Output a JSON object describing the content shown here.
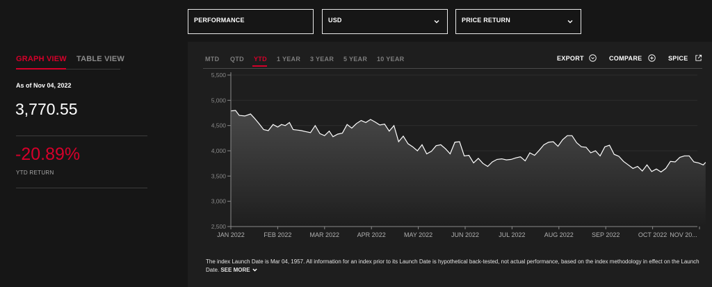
{
  "selectors": [
    {
      "label": "PERFORMANCE",
      "has_chevron": false
    },
    {
      "label": "USD",
      "has_chevron": true
    },
    {
      "label": "PRICE RETURN",
      "has_chevron": true
    }
  ],
  "view_tabs": {
    "graph": "GRAPH VIEW",
    "table": "TABLE VIEW",
    "active": "graph"
  },
  "summary": {
    "as_of": "As of Nov 04, 2022",
    "value": "3,770.55",
    "ytd_return": "-20.89%",
    "ytd_label": "YTD RETURN"
  },
  "periods": [
    "MTD",
    "QTD",
    "YTD",
    "1 YEAR",
    "3 YEAR",
    "5 YEAR",
    "10 YEAR"
  ],
  "active_period": "YTD",
  "actions": {
    "export": "EXPORT",
    "compare": "COMPARE",
    "spice": "SPICE"
  },
  "icons": {
    "export": "chevron-circle-icon",
    "compare": "plus-circle-icon",
    "spice": "external-link-icon"
  },
  "colors": {
    "accent": "#d6002a",
    "background": "#161616",
    "panel": "#1e1e1e",
    "line": "#ffffff"
  },
  "chart_data": {
    "type": "area",
    "ylim": [
      2500,
      5500
    ],
    "y_ticks": [
      "5,500",
      "5,000",
      "4,500",
      "4,000",
      "3,500",
      "3,000",
      "2,500"
    ],
    "x_tick_labels": [
      "JAN 2022",
      "FEB 2022",
      "MAR 2022",
      "APR 2022",
      "MAY 2022",
      "JUN 2022",
      "JUL 2022",
      "AUG 2022",
      "SEP 2022",
      "OCT 2022",
      "NOV 20..."
    ],
    "x_tick_months": [
      0,
      1,
      2,
      3,
      4,
      5,
      6,
      7,
      8,
      9,
      10
    ],
    "series": [
      {
        "x_months": [
          0.0,
          0.1,
          0.18,
          0.3,
          0.42,
          0.5,
          0.6,
          0.7,
          0.8,
          0.9,
          1.0,
          1.08,
          1.16,
          1.25,
          1.33,
          1.42,
          1.5,
          1.6,
          1.7,
          1.8,
          1.9,
          2.0,
          2.1,
          2.18,
          2.28,
          2.38,
          2.48,
          2.58,
          2.68,
          2.78,
          2.88,
          2.98,
          3.08,
          3.18,
          3.28,
          3.38,
          3.48,
          3.58,
          3.68,
          3.78,
          3.88,
          3.98,
          4.08,
          4.18,
          4.28,
          4.38,
          4.48,
          4.58,
          4.68,
          4.78,
          4.88,
          4.98,
          5.08,
          5.18,
          5.28,
          5.38,
          5.48,
          5.58,
          5.68,
          5.78,
          5.88,
          5.98,
          6.08,
          6.18,
          6.28,
          6.38,
          6.48,
          6.58,
          6.68,
          6.78,
          6.88,
          6.98,
          7.08,
          7.18,
          7.28,
          7.38,
          7.48,
          7.58,
          7.68,
          7.78,
          7.88,
          7.98,
          8.08,
          8.18,
          8.28,
          8.38,
          8.48,
          8.58,
          8.68,
          8.78,
          8.88,
          8.98,
          9.08,
          9.18,
          9.28,
          9.38,
          9.48,
          9.58,
          9.68,
          9.78,
          9.88,
          9.98,
          10.08,
          10.13
        ],
        "values": [
          4790,
          4800,
          4700,
          4690,
          4730,
          4650,
          4540,
          4420,
          4400,
          4520,
          4470,
          4520,
          4500,
          4560,
          4420,
          4410,
          4400,
          4380,
          4360,
          4500,
          4340,
          4300,
          4390,
          4280,
          4330,
          4350,
          4520,
          4450,
          4540,
          4600,
          4560,
          4620,
          4570,
          4510,
          4530,
          4390,
          4500,
          4180,
          4290,
          4140,
          4080,
          4000,
          4120,
          3940,
          3990,
          4100,
          4120,
          4040,
          3940,
          4170,
          4180,
          3900,
          3910,
          3760,
          3850,
          3750,
          3690,
          3780,
          3830,
          3840,
          3820,
          3830,
          3860,
          3880,
          3800,
          3960,
          3910,
          4010,
          4120,
          4170,
          4180,
          4090,
          4220,
          4300,
          4300,
          4160,
          4080,
          4070,
          3960,
          4000,
          3900,
          4080,
          4110,
          3930,
          3890,
          3790,
          3720,
          3650,
          3690,
          3600,
          3720,
          3590,
          3640,
          3580,
          3650,
          3790,
          3780,
          3870,
          3900,
          3900,
          3780,
          3760,
          3720,
          3770
        ]
      }
    ]
  }
}
